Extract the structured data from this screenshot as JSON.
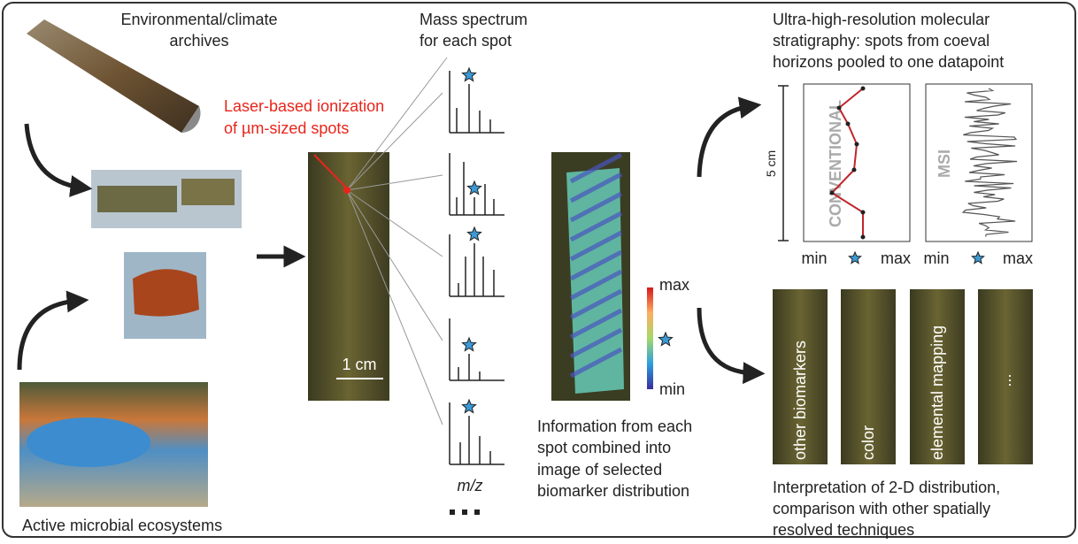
{
  "archives": {
    "label": [
      "Environmental/climate",
      "archives"
    ]
  },
  "ecosystems": {
    "label": "Active microbial ecosystems"
  },
  "ionization": {
    "label": [
      "Laser-based ionization",
      "of µm-sized spots"
    ]
  },
  "spectra": {
    "title": [
      "Mass spectrum",
      "for each spot"
    ],
    "axis_label": "m/z"
  },
  "scale_bar": "1 cm",
  "colorbar": {
    "max": "max",
    "min": "min"
  },
  "combined": {
    "caption": [
      "Information from each",
      "spot combined into",
      "image of selected",
      "biomarker distribution"
    ]
  },
  "stratigraphy": {
    "title": [
      "Ultra-high-resolution molecular",
      "stratigraphy: spots from coeval",
      "horizons pooled to one datapoint"
    ],
    "scale": "5 cm",
    "plots": [
      {
        "label": "CONVENTIONAL",
        "x_min": "min",
        "x_max": "max"
      },
      {
        "label": "MSI",
        "x_min": "min",
        "x_max": "max"
      }
    ]
  },
  "techniques": {
    "panels": [
      "other biomarkers",
      "color",
      "elemental mapping",
      "..."
    ],
    "caption": [
      "Interpretation of 2-D distribution,",
      "comparison with other spatially",
      "resolved techniques"
    ]
  }
}
